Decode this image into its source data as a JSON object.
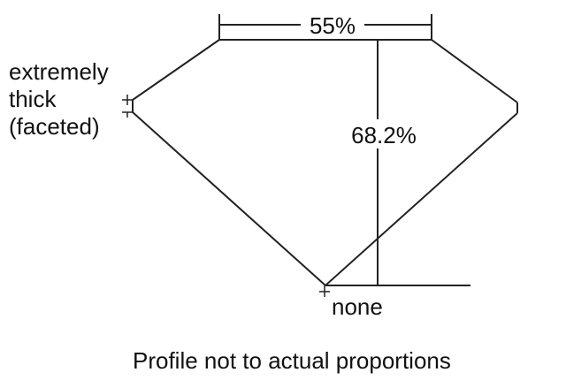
{
  "labels": {
    "table_percent": "55%",
    "depth_percent": "68.2%",
    "girdle_line1": "extremely",
    "girdle_line2": "thick",
    "girdle_line3": "(faceted)",
    "culet": "none",
    "caption": "Profile not to actual proportions"
  },
  "colors": {
    "line": "#222222",
    "text": "#111111",
    "background": "#ffffff"
  }
}
